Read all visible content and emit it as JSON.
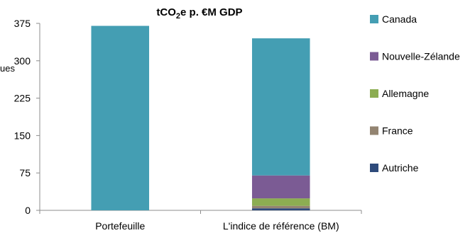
{
  "chart_data": {
    "type": "bar",
    "stacked": true,
    "title_main": "tCO",
    "title_sub": "2",
    "title_rest": "e p. €M GDP",
    "ylabel_fragment": "ues",
    "categories": [
      "Portefeuille",
      "L'indice de référence (BM)"
    ],
    "ylim": [
      0,
      375
    ],
    "yticks": [
      0,
      75,
      150,
      225,
      300,
      375
    ],
    "legend_position": "right",
    "grid": false,
    "series": [
      {
        "name": "Autriche",
        "color": "#2e4a7b",
        "values": [
          0,
          4
        ]
      },
      {
        "name": "France",
        "color": "#938471",
        "values": [
          0,
          5
        ]
      },
      {
        "name": "Allemagne",
        "color": "#8cad52",
        "values": [
          0,
          15
        ]
      },
      {
        "name": "Nouvelle-Zélande",
        "color": "#7b5b94",
        "values": [
          0,
          46
        ]
      },
      {
        "name": "Canada",
        "color": "#449eb3",
        "values": [
          370,
          275
        ]
      }
    ]
  }
}
